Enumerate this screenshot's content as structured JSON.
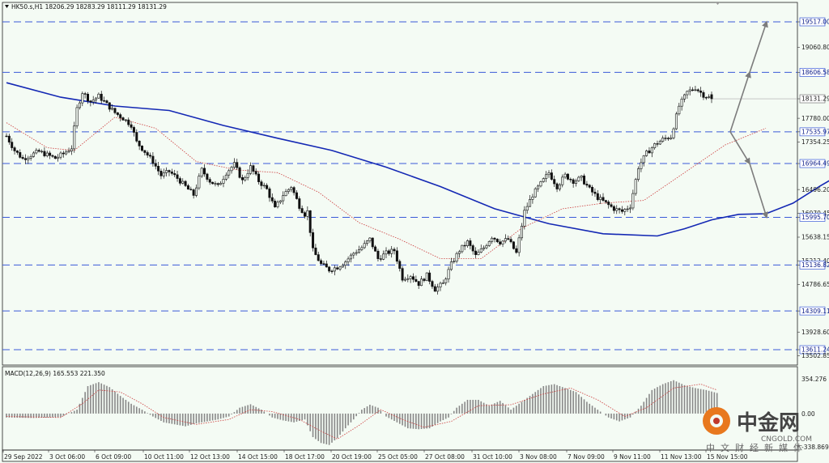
{
  "header": {
    "symbol_line": "HK50.s,H1  18206.29 18283.29 18111.29 18131.29"
  },
  "macd_header": "MACD(12,26,9) 165.553 221.350",
  "colors": {
    "background": "#f4fbf4",
    "candle": "#111111",
    "ma_slow": "#1428b4",
    "ma_fast": "#cc3a3a",
    "level_line": "#3a5ad8",
    "arrow": "#7c7c7c",
    "macd_hist": "#888888",
    "macd_signal": "#cc3a3a"
  },
  "watermark": {
    "brand": "中金网",
    "site": "CNGOLD.COM",
    "slogan": "中文财经新媒体"
  },
  "chart_data": [
    {
      "type": "candlestick",
      "title": "HK50.s,H1",
      "ohlc_current": {
        "open": 18206.29,
        "high": 18283.29,
        "low": 18111.29,
        "close": 18131.29
      },
      "x_tick_labels": [
        "29 Sep 2022",
        "3 Oct 06:00",
        "6 Oct 09:00",
        "10 Oct 11:00",
        "12 Oct 13:00",
        "14 Oct 15:00",
        "18 Oct 17:00",
        "20 Oct 19:00",
        "25 Oct 05:00",
        "27 Oct 08:00",
        "31 Oct 10:00",
        "3 Nov 08:00",
        "7 Nov 09:00",
        "9 Nov 11:00",
        "11 Nov 13:00",
        "15 Nov 15:00"
      ],
      "y_tick_labels": [
        "19517.00",
        "19060.80",
        "18606.58",
        "18131.29",
        "17780.00",
        "17535.97",
        "17354.25",
        "16964.49",
        "16496.20",
        "16070.45",
        "15995.70",
        "15638.15",
        "15212.40",
        "15136.82",
        "14786.65",
        "14309.11",
        "13928.60",
        "13611.24",
        "13502.85"
      ],
      "horizontal_levels": [
        19517.0,
        18606.58,
        17535.97,
        16964.49,
        15995.7,
        15136.82,
        14309.11,
        13611.24
      ],
      "ylim": [
        13400,
        20000
      ],
      "close_path": [
        [
          0,
          17460
        ],
        [
          3,
          17200
        ],
        [
          6,
          17050
        ],
        [
          9,
          17120
        ],
        [
          12,
          17180
        ],
        [
          15,
          17120
        ],
        [
          18,
          17060
        ],
        [
          21,
          17140
        ],
        [
          24,
          17250
        ],
        [
          26,
          17950
        ],
        [
          28,
          18250
        ],
        [
          31,
          18080
        ],
        [
          34,
          18180
        ],
        [
          37,
          18030
        ],
        [
          40,
          17880
        ],
        [
          43,
          17780
        ],
        [
          46,
          17660
        ],
        [
          48,
          17350
        ],
        [
          51,
          17180
        ],
        [
          54,
          17000
        ],
        [
          57,
          16750
        ],
        [
          60,
          16820
        ],
        [
          63,
          16700
        ],
        [
          66,
          16550
        ],
        [
          69,
          16400
        ],
        [
          72,
          16850
        ],
        [
          75,
          16650
        ],
        [
          78,
          16550
        ],
        [
          81,
          16800
        ],
        [
          84,
          16950
        ],
        [
          87,
          16650
        ],
        [
          90,
          16900
        ],
        [
          93,
          16650
        ],
        [
          96,
          16500
        ],
        [
          99,
          16150
        ],
        [
          102,
          16400
        ],
        [
          105,
          16550
        ],
        [
          108,
          16200
        ],
        [
          110,
          16050
        ],
        [
          111,
          16100
        ],
        [
          113,
          15400
        ],
        [
          116,
          15150
        ],
        [
          119,
          15050
        ],
        [
          122,
          15100
        ],
        [
          125,
          15200
        ],
        [
          128,
          15350
        ],
        [
          131,
          15450
        ],
        [
          134,
          15600
        ],
        [
          137,
          15250
        ],
        [
          140,
          15350
        ],
        [
          143,
          15400
        ],
        [
          146,
          14900
        ],
        [
          149,
          14950
        ],
        [
          152,
          14800
        ],
        [
          155,
          14950
        ],
        [
          158,
          14700
        ],
        [
          161,
          14800
        ],
        [
          164,
          15150
        ],
        [
          167,
          15400
        ],
        [
          170,
          15550
        ],
        [
          173,
          15300
        ],
        [
          176,
          15450
        ],
        [
          179,
          15650
        ],
        [
          182,
          15550
        ],
        [
          185,
          15600
        ],
        [
          188,
          15350
        ],
        [
          191,
          16100
        ],
        [
          194,
          16400
        ],
        [
          197,
          16600
        ],
        [
          200,
          16800
        ],
        [
          203,
          16550
        ],
        [
          206,
          16750
        ],
        [
          209,
          16650
        ],
        [
          212,
          16700
        ],
        [
          215,
          16500
        ],
        [
          218,
          16350
        ],
        [
          221,
          16250
        ],
        [
          224,
          16150
        ],
        [
          227,
          16100
        ],
        [
          230,
          16200
        ],
        [
          233,
          16900
        ],
        [
          236,
          17150
        ],
        [
          239,
          17300
        ],
        [
          242,
          17400
        ],
        [
          245,
          17450
        ],
        [
          248,
          18000
        ],
        [
          251,
          18250
        ],
        [
          254,
          18330
        ],
        [
          257,
          18200
        ],
        [
          260,
          18131
        ]
      ],
      "ma_slow_path": [
        [
          0,
          18420
        ],
        [
          20,
          18160
        ],
        [
          40,
          18000
        ],
        [
          60,
          17920
        ],
        [
          80,
          17650
        ],
        [
          100,
          17420
        ],
        [
          120,
          17200
        ],
        [
          140,
          16900
        ],
        [
          160,
          16550
        ],
        [
          180,
          16150
        ],
        [
          200,
          15880
        ],
        [
          220,
          15700
        ],
        [
          240,
          15660
        ],
        [
          250,
          15790
        ],
        [
          260,
          15950
        ],
        [
          270,
          16050
        ],
        [
          280,
          16060
        ],
        [
          290,
          16250
        ],
        [
          300,
          16560
        ],
        [
          306,
          16730
        ]
      ],
      "ma_fast_path": [
        [
          0,
          17700
        ],
        [
          15,
          17250
        ],
        [
          25,
          17200
        ],
        [
          40,
          17800
        ],
        [
          55,
          17600
        ],
        [
          70,
          17000
        ],
        [
          85,
          16850
        ],
        [
          100,
          16800
        ],
        [
          115,
          16450
        ],
        [
          130,
          15900
        ],
        [
          145,
          15600
        ],
        [
          160,
          15250
        ],
        [
          175,
          15250
        ],
        [
          190,
          15800
        ],
        [
          205,
          16150
        ],
        [
          220,
          16250
        ],
        [
          235,
          16300
        ],
        [
          250,
          16800
        ],
        [
          265,
          17300
        ],
        [
          280,
          17600
        ]
      ],
      "scenario_arrows": [
        {
          "direction": "up",
          "points": [
            [
              17535.97,
              0
            ],
            [
              18606.58,
              1
            ],
            [
              19517.0,
              2
            ]
          ]
        },
        {
          "direction": "down",
          "points": [
            [
              17535.97,
              0
            ],
            [
              16964.49,
              1
            ],
            [
              15995.7,
              2
            ]
          ]
        }
      ]
    },
    {
      "type": "bar",
      "title": "MACD(12,26,9) 165.553 221.350",
      "y_tick_labels": [
        "354.276",
        "0.00",
        "-338.869"
      ],
      "ylim": [
        -338.869,
        354.276
      ],
      "histogram_path": [
        [
          0,
          -40
        ],
        [
          10,
          -45
        ],
        [
          20,
          -35
        ],
        [
          26,
          40
        ],
        [
          30,
          280
        ],
        [
          34,
          320
        ],
        [
          38,
          270
        ],
        [
          42,
          180
        ],
        [
          46,
          100
        ],
        [
          50,
          40
        ],
        [
          54,
          -30
        ],
        [
          58,
          -90
        ],
        [
          62,
          -110
        ],
        [
          66,
          -130
        ],
        [
          70,
          -100
        ],
        [
          74,
          -80
        ],
        [
          78,
          -60
        ],
        [
          82,
          -30
        ],
        [
          86,
          60
        ],
        [
          90,
          95
        ],
        [
          94,
          40
        ],
        [
          98,
          -40
        ],
        [
          102,
          -70
        ],
        [
          106,
          -90
        ],
        [
          110,
          -60
        ],
        [
          113,
          -240
        ],
        [
          116,
          -300
        ],
        [
          119,
          -320
        ],
        [
          122,
          -250
        ],
        [
          125,
          -150
        ],
        [
          128,
          -60
        ],
        [
          131,
          40
        ],
        [
          134,
          90
        ],
        [
          137,
          60
        ],
        [
          140,
          -30
        ],
        [
          144,
          -90
        ],
        [
          148,
          -150
        ],
        [
          152,
          -160
        ],
        [
          156,
          -150
        ],
        [
          160,
          -80
        ],
        [
          163,
          -40
        ],
        [
          166,
          60
        ],
        [
          170,
          140
        ],
        [
          174,
          140
        ],
        [
          178,
          80
        ],
        [
          182,
          130
        ],
        [
          186,
          40
        ],
        [
          190,
          120
        ],
        [
          194,
          200
        ],
        [
          198,
          280
        ],
        [
          202,
          300
        ],
        [
          206,
          260
        ],
        [
          210,
          220
        ],
        [
          214,
          120
        ],
        [
          218,
          40
        ],
        [
          222,
          -40
        ],
        [
          226,
          -80
        ],
        [
          230,
          -40
        ],
        [
          234,
          80
        ],
        [
          238,
          240
        ],
        [
          242,
          300
        ],
        [
          246,
          340
        ],
        [
          250,
          290
        ],
        [
          254,
          260
        ],
        [
          258,
          240
        ],
        [
          262,
          210
        ]
      ],
      "signal_path": [
        [
          0,
          -30
        ],
        [
          20,
          -40
        ],
        [
          28,
          100
        ],
        [
          34,
          240
        ],
        [
          42,
          220
        ],
        [
          50,
          100
        ],
        [
          58,
          -40
        ],
        [
          70,
          -110
        ],
        [
          82,
          -60
        ],
        [
          90,
          40
        ],
        [
          98,
          20
        ],
        [
          108,
          -60
        ],
        [
          116,
          -180
        ],
        [
          122,
          -260
        ],
        [
          130,
          -120
        ],
        [
          138,
          40
        ],
        [
          146,
          -60
        ],
        [
          154,
          -140
        ],
        [
          164,
          -80
        ],
        [
          174,
          80
        ],
        [
          186,
          90
        ],
        [
          198,
          200
        ],
        [
          208,
          260
        ],
        [
          218,
          140
        ],
        [
          228,
          -30
        ],
        [
          236,
          60
        ],
        [
          246,
          260
        ],
        [
          256,
          300
        ],
        [
          262,
          240
        ]
      ]
    }
  ]
}
